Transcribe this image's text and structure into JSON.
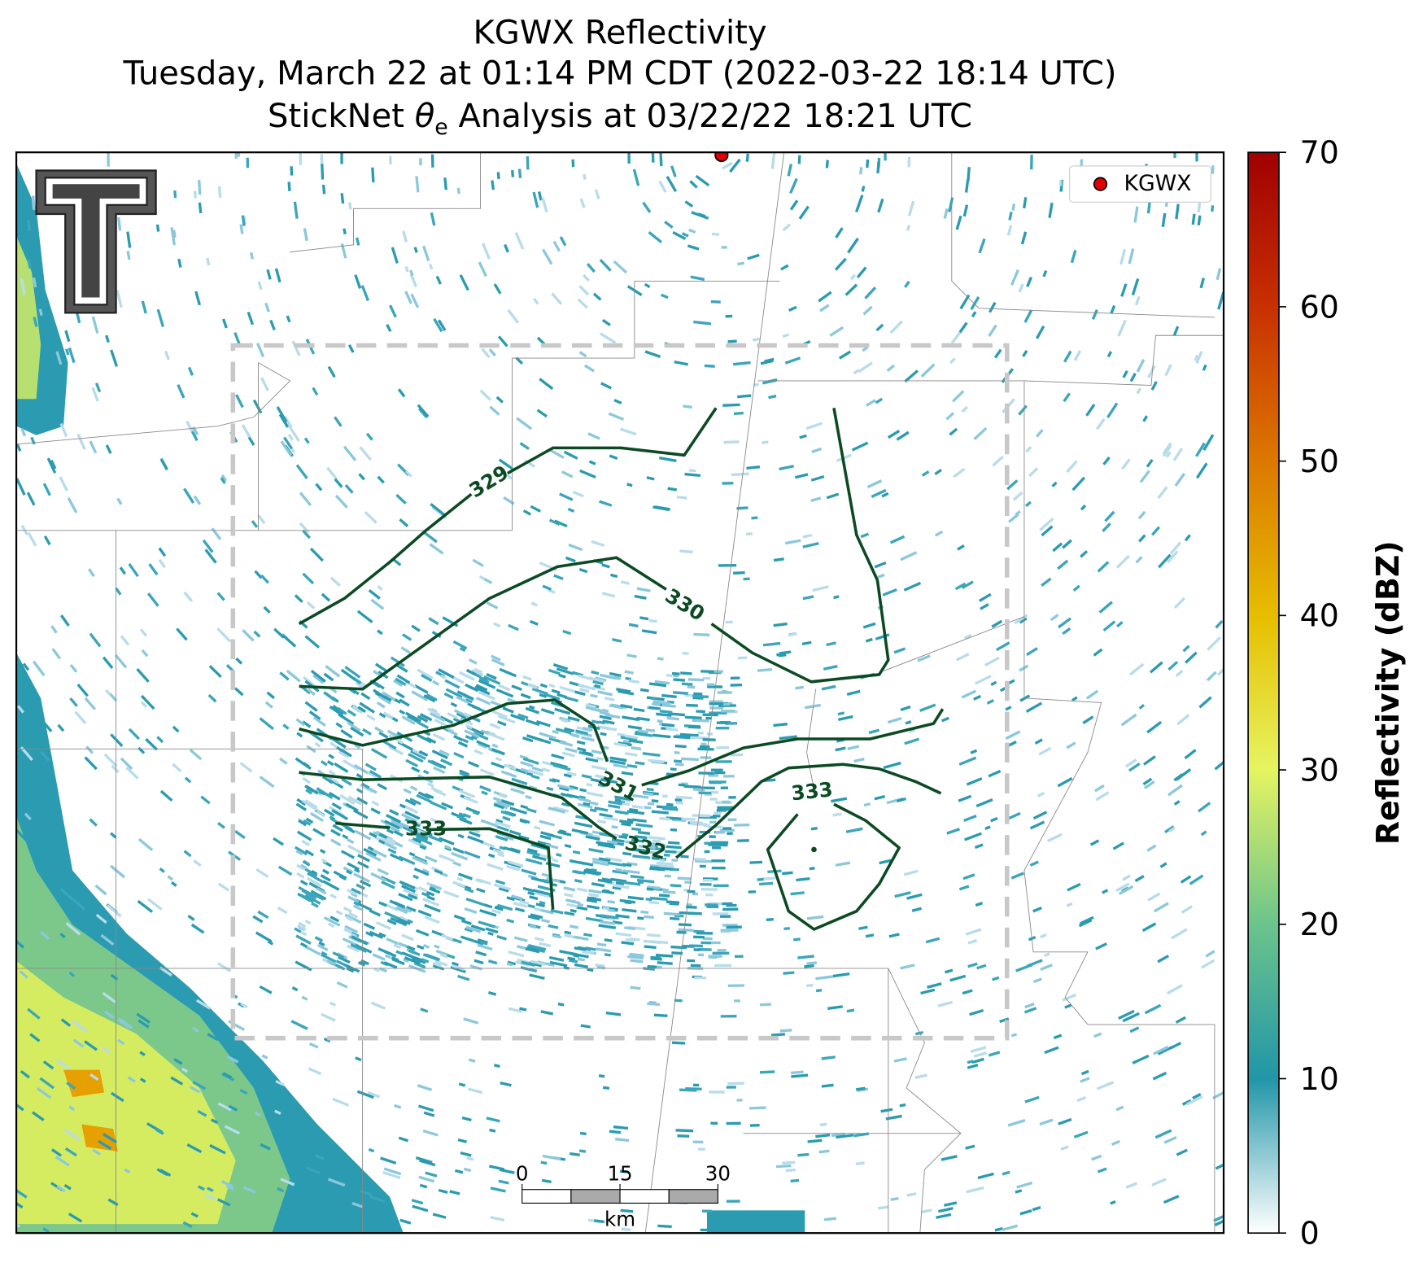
{
  "title": {
    "line1": "KGWX Reflectivity",
    "line2": "Tuesday, March 22 at 01:14 PM CDT (2022-03-22 18:14 UTC)",
    "line3_prefix": "StickNet",
    "line3_symbol": "θ",
    "line3_subscript": "e",
    "line3_suffix": "Analysis at 03/22/22 18:21 UTC"
  },
  "legend": {
    "label": "KGWX"
  },
  "colorbar": {
    "label": "Reflectivity (dBZ)",
    "lim": [
      0,
      70
    ],
    "ticks": [
      0,
      10,
      20,
      30,
      40,
      50,
      60,
      70
    ]
  },
  "contour_labels": [
    329,
    330,
    331,
    332,
    333,
    333
  ],
  "scale_bar": {
    "ticks": [
      0,
      15,
      30
    ],
    "unit": "km"
  }
}
